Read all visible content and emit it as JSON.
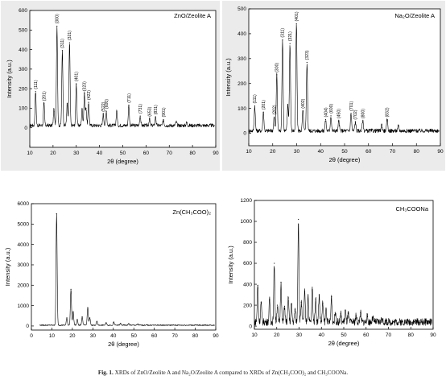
{
  "caption": {
    "label": "Fig. 1.",
    "text": "XRDs of ZnO/Zeolite A and Na₂O/Zeolite A compared to XRDs of Zn(CH₃COO)₂ and CH₃COONa."
  },
  "chart_data": [
    {
      "type": "line",
      "title": "ZnO/Zeolite A",
      "xlabel": "2θ (degree)",
      "ylabel": "Intensity (a.u.)",
      "xlim": [
        10,
        90
      ],
      "ylim": [
        -100,
        600
      ],
      "xticks": [
        10,
        20,
        30,
        40,
        50,
        60,
        70,
        80,
        90
      ],
      "yticks": [
        0,
        100,
        200,
        300,
        400,
        500,
        600
      ],
      "baseline": 12,
      "noise": 9,
      "grid": false,
      "peaks": [
        {
          "x": 12.5,
          "y": 185,
          "label": "(111)"
        },
        {
          "x": 16.1,
          "y": 125,
          "label": "(201)"
        },
        {
          "x": 20.4,
          "y": 95
        },
        {
          "x": 21.7,
          "y": 520,
          "label": "(300)"
        },
        {
          "x": 24.0,
          "y": 395,
          "label": "(311)"
        },
        {
          "x": 26.1,
          "y": 125
        },
        {
          "x": 27.1,
          "y": 435,
          "label": "(321)"
        },
        {
          "x": 30.0,
          "y": 225,
          "label": "(401)"
        },
        {
          "x": 32.5,
          "y": 95
        },
        {
          "x": 33.5,
          "y": 175,
          "label": "(323)"
        },
        {
          "x": 34.2,
          "y": 100
        },
        {
          "x": 35.3,
          "y": 130,
          "label": "(422)"
        },
        {
          "x": 41.6,
          "y": 70,
          "label": "(522)"
        },
        {
          "x": 42.9,
          "y": 85,
          "label": "(600)"
        },
        {
          "x": 47.4,
          "y": 85
        },
        {
          "x": 52.6,
          "y": 115,
          "label": "(711)"
        },
        {
          "x": 57.5,
          "y": 60,
          "label": "(731)"
        },
        {
          "x": 61.5,
          "y": 45,
          "label": "(653)"
        },
        {
          "x": 64.1,
          "y": 55,
          "label": "(831)"
        },
        {
          "x": 67.5,
          "y": 42,
          "label": "(901)"
        },
        {
          "x": 73.0,
          "y": 30
        },
        {
          "x": 77.5,
          "y": 28
        }
      ]
    },
    {
      "type": "line",
      "title": "Na₂O/Zeolite A",
      "xlabel": "2θ (degree)",
      "ylabel": "Intensity (a.u.)",
      "xlim": [
        10,
        90
      ],
      "ylim": [
        -50,
        500
      ],
      "xticks": [
        10,
        20,
        30,
        40,
        50,
        60,
        70,
        80,
        90
      ],
      "yticks": [
        0,
        100,
        200,
        300,
        400,
        500
      ],
      "baseline": 10,
      "noise": 8,
      "grid": false,
      "peaks": [
        {
          "x": 12.5,
          "y": 110,
          "label": "(111)"
        },
        {
          "x": 16.1,
          "y": 85,
          "label": "(201)"
        },
        {
          "x": 20.6,
          "y": 65,
          "label": "(202)"
        },
        {
          "x": 21.7,
          "y": 235,
          "label": "(300)"
        },
        {
          "x": 24.1,
          "y": 375,
          "label": "(311)"
        },
        {
          "x": 26.3,
          "y": 115
        },
        {
          "x": 27.2,
          "y": 360,
          "label": "(321)"
        },
        {
          "x": 29.9,
          "y": 440,
          "label": "(401)"
        },
        {
          "x": 32.6,
          "y": 90,
          "label": "(402)"
        },
        {
          "x": 34.3,
          "y": 285,
          "label": "(323)"
        },
        {
          "x": 42.1,
          "y": 55,
          "label": "(404)"
        },
        {
          "x": 44.3,
          "y": 70,
          "label": "(600)"
        },
        {
          "x": 47.6,
          "y": 50,
          "label": "(450)"
        },
        {
          "x": 52.7,
          "y": 80,
          "label": "(701)"
        },
        {
          "x": 54.5,
          "y": 45,
          "label": "(702)"
        },
        {
          "x": 57.6,
          "y": 50,
          "label": "(800)"
        },
        {
          "x": 65.5,
          "y": 35
        },
        {
          "x": 67.8,
          "y": 55,
          "label": "(832)"
        },
        {
          "x": 72.5,
          "y": 30
        }
      ]
    },
    {
      "type": "line",
      "title": "Zn(CH₃COO)₂",
      "xlabel": "2θ (degree)",
      "ylabel": "Intensity (a.u.)",
      "xlim": [
        0,
        90
      ],
      "ylim": [
        -200,
        6000
      ],
      "xticks": [
        0,
        10,
        20,
        30,
        40,
        50,
        60,
        70,
        80,
        90
      ],
      "yticks": [
        0,
        1000,
        2000,
        3000,
        4000,
        5000,
        6000
      ],
      "baseline": 40,
      "noise": 25,
      "grid": false,
      "peaks": [
        {
          "x": 12.3,
          "y": 5500
        },
        {
          "x": 17.3,
          "y": 400
        },
        {
          "x": 19.3,
          "y": 1800
        },
        {
          "x": 20.4,
          "y": 700
        },
        {
          "x": 22.4,
          "y": 320
        },
        {
          "x": 24.8,
          "y": 450
        },
        {
          "x": 27.5,
          "y": 900
        },
        {
          "x": 28.5,
          "y": 400
        },
        {
          "x": 32.0,
          "y": 220
        },
        {
          "x": 36.5,
          "y": 160
        },
        {
          "x": 40.2,
          "y": 190
        },
        {
          "x": 43.5,
          "y": 120
        },
        {
          "x": 47.5,
          "y": 110
        },
        {
          "x": 52.0,
          "y": 90
        }
      ]
    },
    {
      "type": "line",
      "title": "CH₃COONa",
      "xlabel": "2θ (degree)",
      "ylabel": "Intensity (a.u.)",
      "xlim": [
        10,
        90
      ],
      "ylim": [
        -30,
        1200
      ],
      "xticks": [
        10,
        20,
        30,
        40,
        50,
        60,
        70,
        80,
        90
      ],
      "yticks": [
        0,
        200,
        400,
        600,
        800,
        1000,
        1200
      ],
      "baseline": 40,
      "noise": 35,
      "grid": false,
      "peaks": [
        {
          "x": 11.5,
          "y": 390
        },
        {
          "x": 13.0,
          "y": 230
        },
        {
          "x": 16.8,
          "y": 250
        },
        {
          "x": 18.9,
          "y": 600
        },
        {
          "x": 20.3,
          "y": 200
        },
        {
          "x": 21.9,
          "y": 420
        },
        {
          "x": 23.5,
          "y": 190
        },
        {
          "x": 25.2,
          "y": 270
        },
        {
          "x": 26.6,
          "y": 210
        },
        {
          "x": 28.2,
          "y": 160
        },
        {
          "x": 29.7,
          "y": 1020
        },
        {
          "x": 31.0,
          "y": 230
        },
        {
          "x": 32.5,
          "y": 330
        },
        {
          "x": 34.0,
          "y": 300
        },
        {
          "x": 35.9,
          "y": 370
        },
        {
          "x": 37.4,
          "y": 260
        },
        {
          "x": 39.0,
          "y": 300
        },
        {
          "x": 40.6,
          "y": 220
        },
        {
          "x": 42.1,
          "y": 170
        },
        {
          "x": 44.5,
          "y": 280
        },
        {
          "x": 46.2,
          "y": 130
        },
        {
          "x": 48.7,
          "y": 120
        },
        {
          "x": 50.7,
          "y": 150
        },
        {
          "x": 52.0,
          "y": 120
        },
        {
          "x": 55.5,
          "y": 100
        },
        {
          "x": 57.5,
          "y": 130
        },
        {
          "x": 60.5,
          "y": 90
        },
        {
          "x": 63.0,
          "y": 80
        },
        {
          "x": 67.0,
          "y": 70
        }
      ]
    }
  ]
}
